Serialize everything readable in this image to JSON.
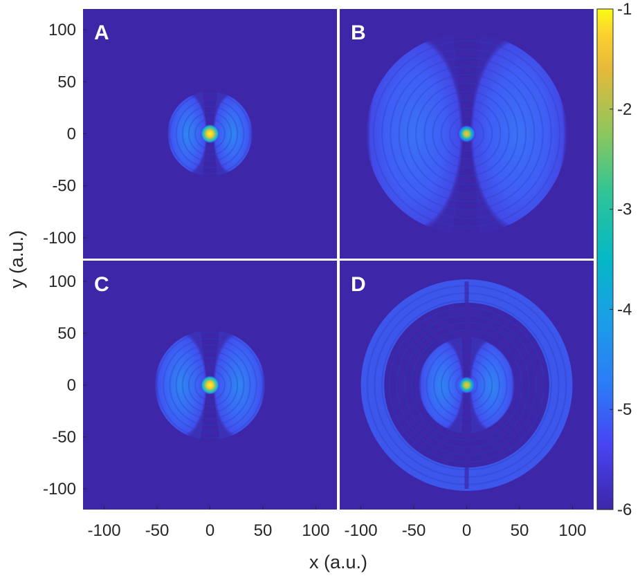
{
  "chart_data": {
    "type": "heatmap",
    "title": "",
    "xlabel": "x (a.u.)",
    "ylabel": "y (a.u.)",
    "xlim": [
      -120,
      120
    ],
    "ylim": [
      -120,
      120
    ],
    "colorbar": {
      "colormap": "parula",
      "range": [
        -6,
        -1
      ],
      "ticks": [
        "-1",
        "-2",
        "-3",
        "-4",
        "-5",
        "-6"
      ]
    },
    "panels": [
      {
        "label": "A",
        "x_ticks": [
          "-100",
          "-50",
          "0",
          "50",
          "100"
        ],
        "y_ticks": [
          "100",
          "50",
          "0",
          "-50",
          "-100"
        ],
        "pattern": "two lobes split along the y-axis, fringed",
        "outer_radius": 40,
        "core_value": -1
      },
      {
        "label": "B",
        "x_ticks": [
          "-100",
          "-50",
          "0",
          "50",
          "100"
        ],
        "y_ticks": [
          "100",
          "50",
          "0",
          "-50",
          "-100"
        ],
        "pattern": "two large lobes split along the y-axis, fringed",
        "outer_radius": 95,
        "core_value": -2
      },
      {
        "label": "C",
        "x_ticks": [
          "-100",
          "-50",
          "0",
          "50",
          "100"
        ],
        "y_ticks": [
          "100",
          "50",
          "0",
          "-50",
          "-100"
        ],
        "pattern": "two lobes split along the y-axis, fringed",
        "outer_radius": 52,
        "core_value": -1
      },
      {
        "label": "D",
        "x_ticks": [
          "-100",
          "-50",
          "0",
          "50",
          "100"
        ],
        "y_ticks": [
          "100",
          "50",
          "0",
          "-50",
          "-100"
        ],
        "pattern": "inner two-lobe structure plus an outer ring, fringed",
        "inner_radius": 45,
        "outer_radius": 100,
        "core_value": -2
      }
    ],
    "colors": {
      "background_level": "#3d26a8",
      "lobe_level": "#3b57f5",
      "core_level": "#f9d13b"
    }
  }
}
